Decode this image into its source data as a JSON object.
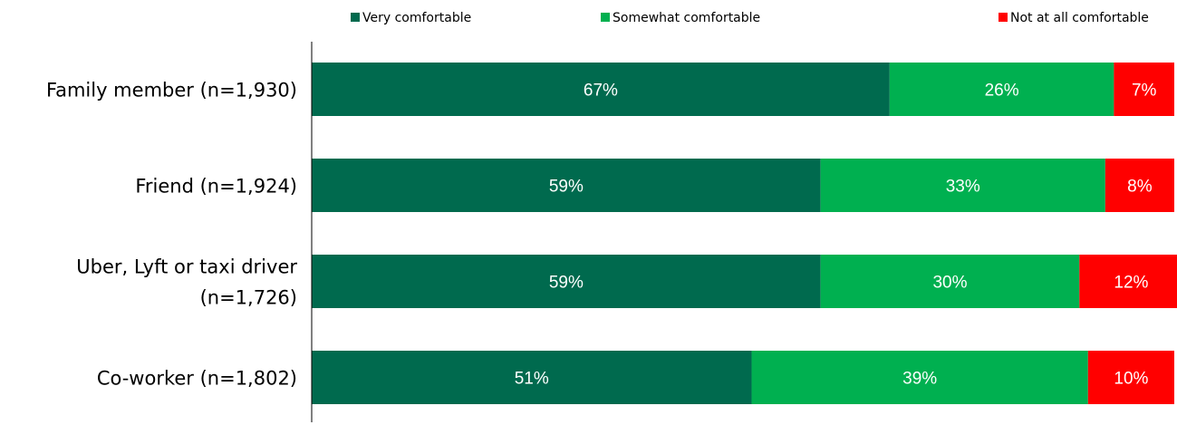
{
  "chart_data": {
    "type": "bar",
    "orientation": "horizontal",
    "stacked": true,
    "categories": [
      [
        "Family member (n=1,930)"
      ],
      [
        "Friend (n=1,924)"
      ],
      [
        "Uber, Lyft or taxi driver",
        "(n=1,726)"
      ],
      [
        "Co-worker (n=1,802)"
      ]
    ],
    "series": [
      {
        "name": "Very comfortable",
        "color": "#006a4e",
        "values": [
          67,
          59,
          59,
          51
        ],
        "labels": [
          "67%",
          "59%",
          "59%",
          "51%"
        ]
      },
      {
        "name": "Somewhat comfortable",
        "color": "#00b050",
        "values": [
          26,
          33,
          30,
          39
        ],
        "labels": [
          "26%",
          "33%",
          "30%",
          "39%"
        ]
      },
      {
        "name": "Not at all comfortable",
        "color": "#ff0000",
        "values": [
          7,
          8,
          12,
          10
        ],
        "labels": [
          "7%",
          "8%",
          "12%",
          "10%"
        ]
      }
    ],
    "xlim": [
      0,
      100
    ],
    "legend_position": "top",
    "grid": false
  }
}
